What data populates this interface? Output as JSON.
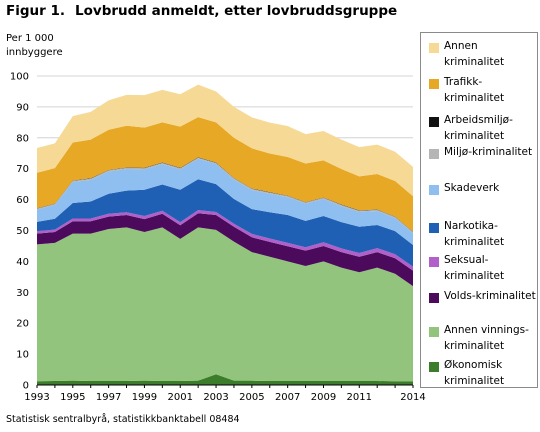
{
  "figure": {
    "number": "Figur 1.",
    "title": "Lovbrudd anmeldt, etter lovbruddsgruppe",
    "source": "Statistisk sentralbyrå, statistikkbanktabell 08484"
  },
  "chart_data": {
    "type": "area",
    "stacked": true,
    "ylabel": "Per 1 000\ninnbyggere",
    "xlabel": "",
    "ylim": [
      0,
      100
    ],
    "yticks": [
      0,
      10,
      20,
      30,
      40,
      50,
      60,
      70,
      80,
      90,
      100
    ],
    "xticks": [
      1993,
      1995,
      1997,
      1999,
      2001,
      2003,
      2005,
      2007,
      2009,
      2011,
      2014
    ],
    "grid": true,
    "legend_position": "right",
    "x": [
      1993,
      1994,
      1995,
      1996,
      1997,
      1998,
      1999,
      2000,
      2001,
      2002,
      2003,
      2004,
      2005,
      2006,
      2007,
      2008,
      2009,
      2010,
      2011,
      2012,
      2013,
      2014
    ],
    "series": [
      {
        "name": "Økonomisk kriminalitet",
        "color": "#3b7d2a",
        "values": [
          1.2,
          1.3,
          1.4,
          1.3,
          1.3,
          1.3,
          1.4,
          1.3,
          1.3,
          1.4,
          3.5,
          1.4,
          1.4,
          1.3,
          1.3,
          1.3,
          1.3,
          1.3,
          1.3,
          1.3,
          1.2,
          1.2
        ]
      },
      {
        "name": "Annen vinnings-kriminalitet",
        "color": "#93c47d",
        "values": [
          44.3,
          44.7,
          47.6,
          47.7,
          49.2,
          49.7,
          48.1,
          49.7,
          46.0,
          49.6,
          46.7,
          45.0,
          41.6,
          40.2,
          38.7,
          37.2,
          38.7,
          36.7,
          35.2,
          36.7,
          34.8,
          30.8
        ]
      },
      {
        "name": "Volds-kriminalitet",
        "color": "#4c0a5c",
        "values": [
          3.5,
          3.5,
          4.0,
          4.0,
          4.0,
          4.0,
          4.2,
          4.4,
          4.4,
          4.6,
          4.8,
          4.8,
          4.8,
          4.8,
          4.9,
          5.0,
          5.0,
          5.0,
          5.0,
          5.0,
          5.0,
          5.0
        ]
      },
      {
        "name": "Seksual-kriminalitet",
        "color": "#b060c8",
        "values": [
          0.8,
          0.8,
          0.9,
          0.9,
          0.9,
          0.9,
          1.0,
          1.0,
          1.0,
          1.0,
          1.0,
          1.0,
          1.1,
          1.1,
          1.1,
          1.1,
          1.2,
          1.2,
          1.2,
          1.3,
          1.3,
          1.3
        ]
      },
      {
        "name": "Narkotika-kriminalitet",
        "color": "#1f5fb4",
        "values": [
          3.0,
          3.5,
          5.0,
          5.5,
          6.5,
          7.0,
          8.5,
          8.5,
          10.5,
          10.0,
          9.0,
          8.0,
          8.0,
          8.5,
          9.0,
          8.5,
          8.5,
          8.5,
          8.5,
          7.5,
          7.5,
          7.0
        ]
      },
      {
        "name": "Skadeverk",
        "color": "#8ebff0",
        "values": [
          4.0,
          4.5,
          6.8,
          7.0,
          7.2,
          7.0,
          6.6,
          6.6,
          6.6,
          6.6,
          6.5,
          6.3,
          6.2,
          6.0,
          5.8,
          5.6,
          5.5,
          5.2,
          4.8,
          4.5,
          4.2,
          3.8
        ]
      },
      {
        "name": "Miljø-kriminalitet",
        "color": "#b5b5b5",
        "values": [
          0.3,
          0.3,
          0.4,
          0.4,
          0.4,
          0.4,
          0.4,
          0.4,
          0.4,
          0.4,
          0.4,
          0.4,
          0.4,
          0.4,
          0.4,
          0.4,
          0.4,
          0.4,
          0.4,
          0.4,
          0.4,
          0.4
        ]
      },
      {
        "name": "Arbeidsmiljø-kriminalitet",
        "color": "#111111",
        "values": [
          0.1,
          0.1,
          0.1,
          0.1,
          0.1,
          0.1,
          0.1,
          0.1,
          0.1,
          0.1,
          0.1,
          0.1,
          0.1,
          0.1,
          0.1,
          0.1,
          0.1,
          0.1,
          0.1,
          0.1,
          0.1,
          0.1
        ]
      },
      {
        "name": "Trafikk-kriminalitet",
        "color": "#e6a825",
        "values": [
          11.5,
          11.5,
          12.3,
          12.5,
          13.0,
          13.5,
          13.0,
          13.0,
          13.3,
          13.0,
          13.0,
          13.0,
          13.0,
          12.5,
          12.5,
          12.5,
          12.0,
          11.5,
          11.0,
          11.5,
          11.5,
          11.5
        ]
      },
      {
        "name": "Annen kriminalitet",
        "color": "#f5d995",
        "values": [
          8.0,
          8.0,
          8.5,
          9.0,
          9.5,
          10.0,
          10.5,
          10.5,
          10.5,
          10.5,
          10.0,
          10.0,
          10.0,
          10.0,
          10.0,
          9.5,
          9.5,
          9.5,
          9.5,
          9.5,
          9.5,
          9.5
        ]
      }
    ]
  },
  "legend": {
    "items": [
      {
        "label": "Annen kriminalitet",
        "color": "#f5d995"
      },
      {
        "label": "Trafikk-kriminalitet",
        "color": "#e6a825"
      },
      {
        "label": "Arbeidsmiljø-kriminalitet",
        "color": "#111111"
      },
      {
        "label": "Miljø-kriminalitet",
        "color": "#b5b5b5"
      },
      {
        "label": "Skadeverk",
        "color": "#8ebff0"
      },
      {
        "label": "Narkotika-kriminalitet",
        "color": "#1f5fb4"
      },
      {
        "label": "Seksual-kriminalitet",
        "color": "#b060c8"
      },
      {
        "label": "Volds-kriminalitet",
        "color": "#4c0a5c"
      },
      {
        "label": "Annen vinnings-kriminalitet",
        "color": "#93c47d"
      },
      {
        "label": "Økonomisk kriminalitet",
        "color": "#3b7d2a"
      }
    ]
  }
}
